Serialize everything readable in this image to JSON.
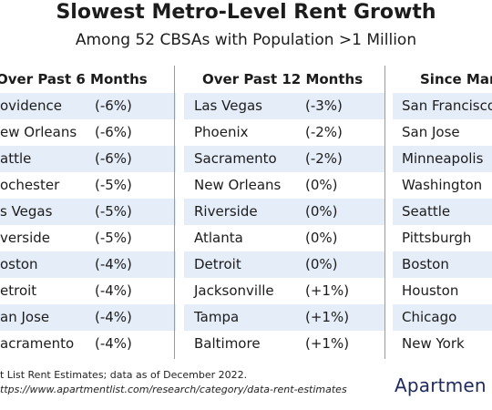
{
  "title": "Slowest Metro-Level Rent Growth",
  "subtitle": "Among 52 CBSAs with Population >1 Million",
  "columns": [
    {
      "header": "Over Past 6 Months",
      "rows": [
        {
          "city": "ovidence",
          "change": "(-6%)"
        },
        {
          "city": "ew Orleans",
          "change": "(-6%)"
        },
        {
          "city": "attle",
          "change": "(-6%)"
        },
        {
          "city": "ochester",
          "change": "(-5%)"
        },
        {
          "city": "s Vegas",
          "change": "(-5%)"
        },
        {
          "city": "verside",
          "change": "(-5%)"
        },
        {
          "city": "oston",
          "change": "(-4%)"
        },
        {
          "city": "etroit",
          "change": "(-4%)"
        },
        {
          "city": "an Jose",
          "change": "(-4%)"
        },
        {
          "city": "acramento",
          "change": "(-4%)"
        }
      ]
    },
    {
      "header": "Over Past 12 Months",
      "rows": [
        {
          "city": "Las Vegas",
          "change": "(-3%)"
        },
        {
          "city": "Phoenix",
          "change": "(-2%)"
        },
        {
          "city": "Sacramento",
          "change": "(-2%)"
        },
        {
          "city": "New Orleans",
          "change": "(0%)"
        },
        {
          "city": "Riverside",
          "change": "(0%)"
        },
        {
          "city": "Atlanta",
          "change": "(0%)"
        },
        {
          "city": "Detroit",
          "change": "(0%)"
        },
        {
          "city": "Jacksonville",
          "change": "(+1%)"
        },
        {
          "city": "Tampa",
          "change": "(+1%)"
        },
        {
          "city": "Baltimore",
          "change": "(+1%)"
        }
      ]
    },
    {
      "header": "Since Mar",
      "rows": [
        {
          "city": "San Francisco",
          "change": ""
        },
        {
          "city": "San Jose",
          "change": ""
        },
        {
          "city": "Minneapolis",
          "change": ""
        },
        {
          "city": "Washington",
          "change": ""
        },
        {
          "city": "Seattle",
          "change": ""
        },
        {
          "city": "Pittsburgh",
          "change": ""
        },
        {
          "city": "Boston",
          "change": ""
        },
        {
          "city": "Houston",
          "change": ""
        },
        {
          "city": "Chicago",
          "change": ""
        },
        {
          "city": "New York",
          "change": ""
        }
      ]
    }
  ],
  "footnote": {
    "line1": "t List Rent Estimates; data as of December 2022.",
    "line2": "ttps://www.apartmentlist.com/research/category/data-rent-estimates"
  },
  "logo": "Apartmen",
  "colors": {
    "row_shade": "#e5edf8",
    "divider": "#9a9a9a",
    "logo": "#1e2a5c"
  }
}
